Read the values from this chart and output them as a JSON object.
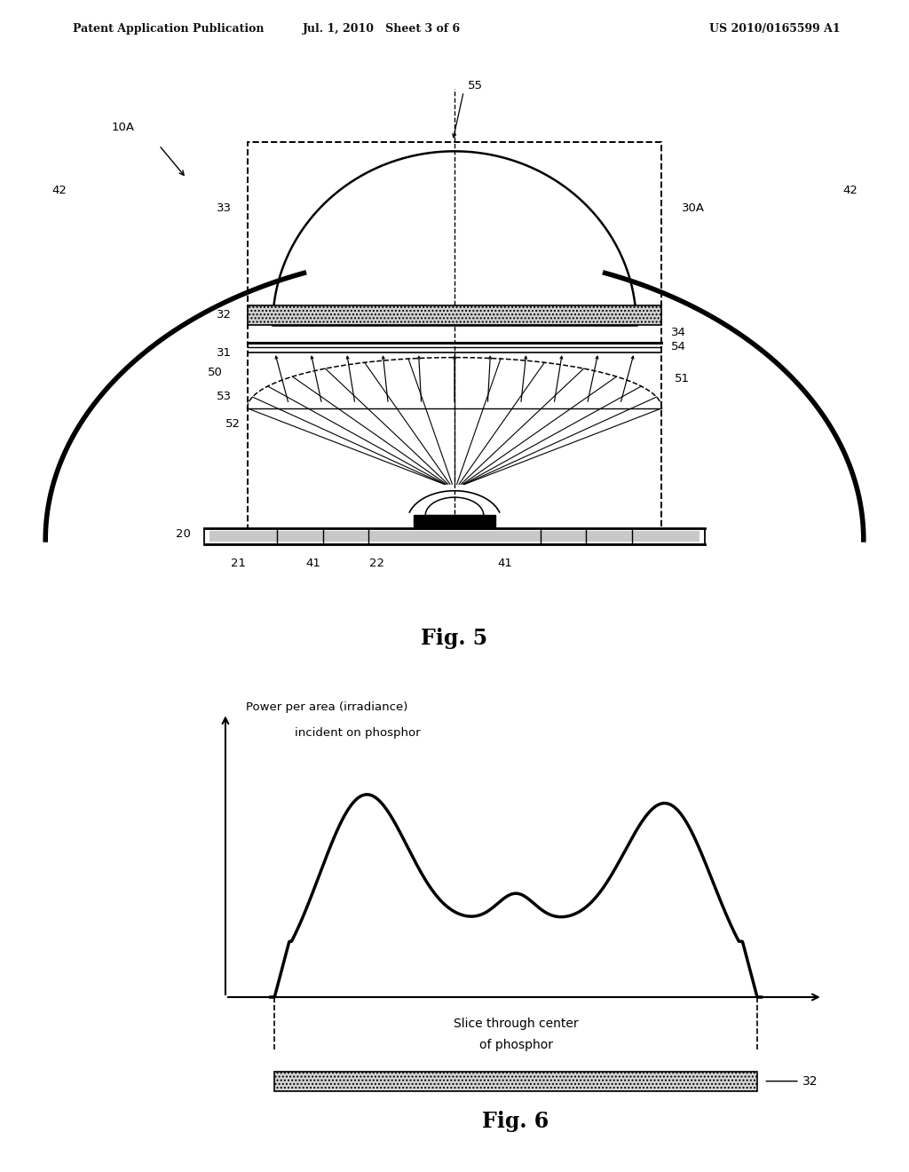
{
  "bg_color": "#ffffff",
  "header_text_left": "Patent Application Publication",
  "header_text_mid": "Jul. 1, 2010   Sheet 3 of 6",
  "header_text_right": "US 2010/0165599 A1",
  "fig5_label": "Fig. 5",
  "fig6_label": "Fig. 6",
  "fig6_y_label_line1": "Power per area (irradiance)",
  "fig6_y_label_line2": "incident on phosphor",
  "fig6_x_label_line1": "Slice through center",
  "fig6_x_label_line2": "of phosphor",
  "label_32_fig6": "32",
  "lw_bold": 4.0,
  "lw_med": 1.8,
  "lw_thin": 1.2,
  "lw_ray": 0.9
}
